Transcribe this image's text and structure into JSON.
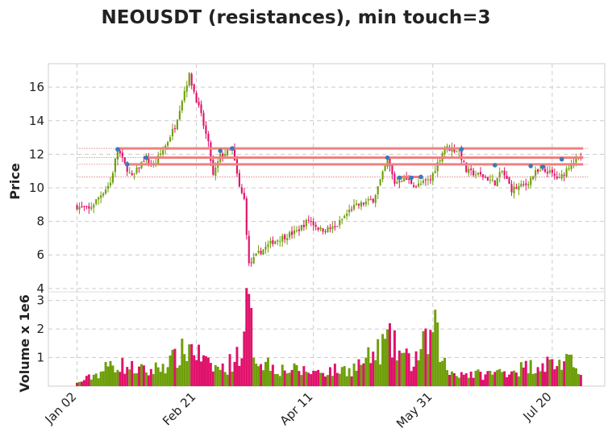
{
  "chart_data": {
    "type": "candlestick",
    "title": "NEOUSDT (resistances), min touch=3",
    "price_panel": {
      "ylabel": "Price",
      "ylim": [
        3.8,
        17.4
      ],
      "yticks": [
        4,
        6,
        8,
        10,
        12,
        14,
        16
      ]
    },
    "volume_panel": {
      "ylabel": "Volume x 1e6",
      "ylim": [
        0,
        3.3
      ],
      "yticks": [
        1,
        2,
        3
      ],
      "ytick_labels": [
        "1",
        "2",
        "3"
      ]
    },
    "x_ticks": [
      {
        "label": "Jan 02",
        "day": 0
      },
      {
        "label": "Feb 21",
        "day": 50
      },
      {
        "label": "Apr 11",
        "day": 99
      },
      {
        "label": "May 31",
        "day": 149
      },
      {
        "label": "Jul 20",
        "day": 199
      }
    ],
    "x_range_days": [
      -12,
      221
    ],
    "price_keypoints": [
      [
        0,
        8.9
      ],
      [
        5,
        8.7
      ],
      [
        10,
        9.6
      ],
      [
        14,
        10.3
      ],
      [
        17,
        12.3
      ],
      [
        20,
        11.4
      ],
      [
        23,
        10.6
      ],
      [
        28,
        11.7
      ],
      [
        32,
        11.3
      ],
      [
        37,
        12.5
      ],
      [
        41,
        13.7
      ],
      [
        45,
        15.8
      ],
      [
        47,
        16.7
      ],
      [
        52,
        14.3
      ],
      [
        55,
        12.6
      ],
      [
        57,
        10.7
      ],
      [
        60,
        11.9
      ],
      [
        65,
        12.3
      ],
      [
        68,
        10.0
      ],
      [
        70,
        9.3
      ],
      [
        72,
        5.4
      ],
      [
        76,
        6.1
      ],
      [
        82,
        6.8
      ],
      [
        92,
        7.4
      ],
      [
        97,
        8.1
      ],
      [
        102,
        7.5
      ],
      [
        108,
        7.6
      ],
      [
        115,
        8.8
      ],
      [
        124,
        9.3
      ],
      [
        128,
        10.8
      ],
      [
        130,
        11.7
      ],
      [
        133,
        10.3
      ],
      [
        137,
        10.6
      ],
      [
        142,
        10.1
      ],
      [
        148,
        10.5
      ],
      [
        152,
        11.8
      ],
      [
        154,
        12.4
      ],
      [
        160,
        12.2
      ],
      [
        163,
        11.0
      ],
      [
        170,
        10.7
      ],
      [
        175,
        10.3
      ],
      [
        178,
        11.0
      ],
      [
        182,
        9.9
      ],
      [
        188,
        10.2
      ],
      [
        192,
        10.9
      ],
      [
        197,
        11.0
      ],
      [
        202,
        10.5
      ],
      [
        207,
        11.5
      ],
      [
        211,
        11.8
      ]
    ],
    "volume_keypoints": [
      [
        0,
        0.1
      ],
      [
        10,
        0.5
      ],
      [
        15,
        0.8
      ],
      [
        30,
        0.5
      ],
      [
        40,
        0.9
      ],
      [
        48,
        1.4
      ],
      [
        55,
        0.7
      ],
      [
        62,
        0.6
      ],
      [
        70,
        1.4
      ],
      [
        71,
        3.0
      ],
      [
        75,
        1.0
      ],
      [
        85,
        0.6
      ],
      [
        100,
        0.5
      ],
      [
        115,
        0.6
      ],
      [
        125,
        1.1
      ],
      [
        130,
        1.6
      ],
      [
        140,
        0.8
      ],
      [
        150,
        1.9
      ],
      [
        155,
        0.5
      ],
      [
        170,
        0.4
      ],
      [
        185,
        0.6
      ],
      [
        195,
        0.8
      ],
      [
        205,
        0.8
      ],
      [
        211,
        0.7
      ]
    ],
    "touch_points": [
      {
        "day": 17,
        "price": 12.3
      },
      {
        "day": 21,
        "price": 11.4
      },
      {
        "day": 29,
        "price": 11.8
      },
      {
        "day": 60,
        "price": 12.2
      },
      {
        "day": 65,
        "price": 12.35
      },
      {
        "day": 130,
        "price": 11.8
      },
      {
        "day": 135,
        "price": 10.6
      },
      {
        "day": 140,
        "price": 10.6
      },
      {
        "day": 144,
        "price": 10.65
      },
      {
        "day": 161,
        "price": 12.3
      },
      {
        "day": 175,
        "price": 11.35
      },
      {
        "day": 190,
        "price": 11.3
      },
      {
        "day": 195,
        "price": 11.25
      },
      {
        "day": 203,
        "price": 11.7
      }
    ],
    "resistance_lines": [
      {
        "start_day": 17,
        "price": 12.35
      },
      {
        "start_day": 29,
        "price": 11.8
      },
      {
        "start_day": 21,
        "price": 11.4
      },
      {
        "start_day": 135,
        "end_day": 144,
        "price": 10.65
      }
    ],
    "dotted_levels": [
      12.35,
      11.8,
      11.4,
      10.65
    ],
    "colors": {
      "up": "#6e9f0a",
      "down": "#e0116b",
      "resistance": "#f08080",
      "dotted": "#cc3333",
      "touch": "#3a7ab8",
      "grid": "#cccccc",
      "frame": "#dddddd"
    },
    "grid": true
  }
}
